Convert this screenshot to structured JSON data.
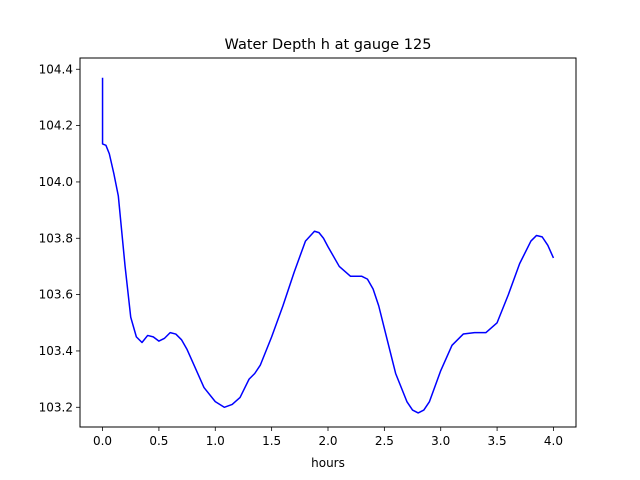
{
  "chart_data": {
    "type": "line",
    "title": "Water Depth h at gauge 125",
    "xlabel": "hours",
    "ylabel": "",
    "xlim": [
      -0.2,
      4.2
    ],
    "ylim": [
      103.13,
      104.44
    ],
    "xticks": [
      0.0,
      0.5,
      1.0,
      1.5,
      2.0,
      2.5,
      3.0,
      3.5,
      4.0
    ],
    "xtick_labels": [
      "0.0",
      "0.5",
      "1.0",
      "1.5",
      "2.0",
      "2.5",
      "3.0",
      "3.5",
      "4.0"
    ],
    "yticks": [
      103.2,
      103.4,
      103.6,
      103.8,
      104.0,
      104.2,
      104.4
    ],
    "ytick_labels": [
      "103.2",
      "103.4",
      "103.6",
      "103.8",
      "104.0",
      "104.2",
      "104.4"
    ],
    "grid": false,
    "series": [
      {
        "color": "#0000ff",
        "x": [
          0.0,
          0.0,
          0.03,
          0.06,
          0.1,
          0.14,
          0.2,
          0.25,
          0.3,
          0.35,
          0.4,
          0.45,
          0.5,
          0.55,
          0.6,
          0.65,
          0.7,
          0.75,
          0.8,
          0.9,
          1.0,
          1.08,
          1.15,
          1.22,
          1.3,
          1.35,
          1.4,
          1.5,
          1.6,
          1.7,
          1.8,
          1.88,
          1.92,
          1.96,
          2.0,
          2.1,
          2.2,
          2.25,
          2.3,
          2.35,
          2.4,
          2.45,
          2.5,
          2.6,
          2.7,
          2.75,
          2.8,
          2.85,
          2.9,
          3.0,
          3.1,
          3.2,
          3.3,
          3.35,
          3.4,
          3.5,
          3.6,
          3.7,
          3.8,
          3.85,
          3.9,
          3.95,
          4.0
        ],
        "y": [
          104.37,
          104.135,
          104.13,
          104.1,
          104.03,
          103.95,
          103.7,
          103.52,
          103.45,
          103.43,
          103.455,
          103.45,
          103.435,
          103.445,
          103.465,
          103.46,
          103.44,
          103.405,
          103.36,
          103.27,
          103.22,
          103.2,
          103.21,
          103.235,
          103.3,
          103.32,
          103.35,
          103.45,
          103.56,
          103.68,
          103.79,
          103.825,
          103.82,
          103.8,
          103.77,
          103.7,
          103.665,
          103.665,
          103.665,
          103.655,
          103.62,
          103.56,
          103.48,
          103.32,
          103.22,
          103.19,
          103.18,
          103.19,
          103.22,
          103.33,
          103.42,
          103.46,
          103.465,
          103.465,
          103.465,
          103.5,
          103.6,
          103.71,
          103.79,
          103.81,
          103.805,
          103.775,
          103.73
        ]
      }
    ]
  }
}
